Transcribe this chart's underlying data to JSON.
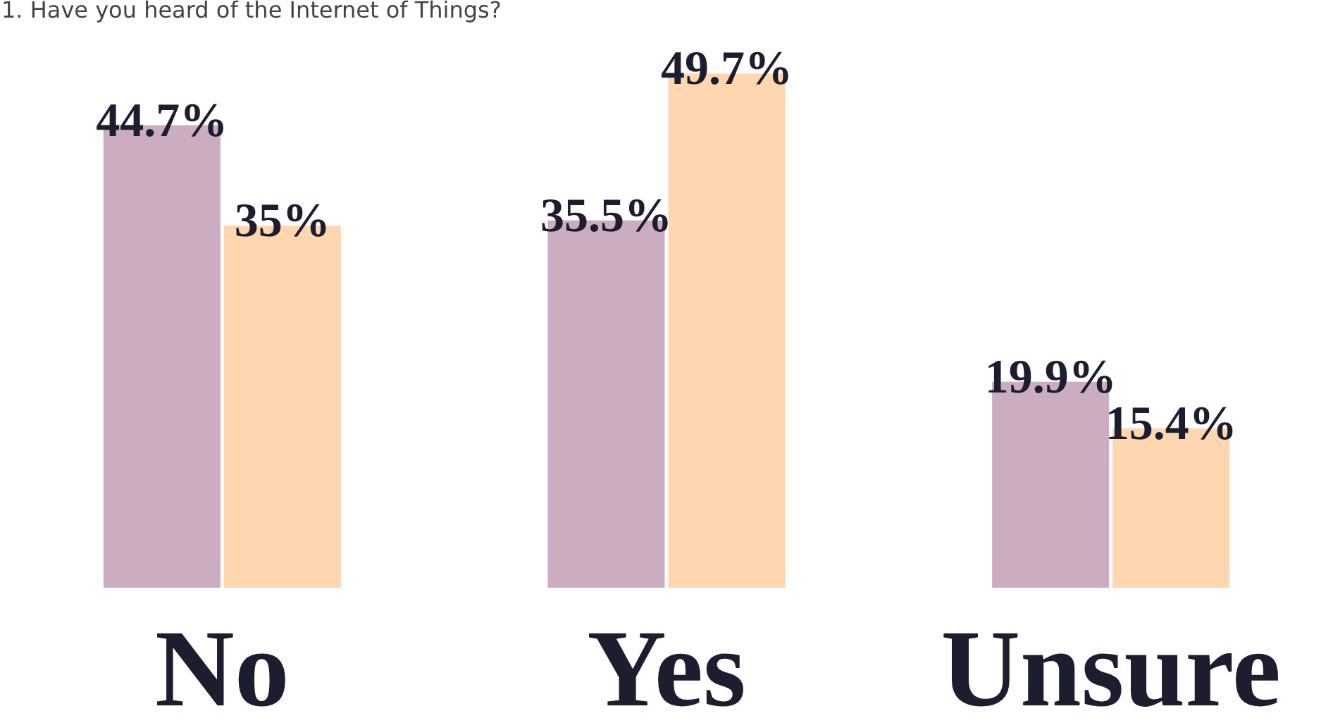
{
  "chart_data": {
    "type": "bar",
    "title": "1. Have you heard of the Internet of Things?",
    "categories": [
      "No",
      "Yes",
      "Unsure"
    ],
    "series": [
      {
        "color": "#cbacc1",
        "values": [
          44.7,
          35.5,
          19.9
        ],
        "value_labels": [
          "44.7%",
          "35.5%",
          "19.9%"
        ]
      },
      {
        "color": "#fed6b0",
        "values": [
          35,
          49.7,
          15.4
        ],
        "value_labels": [
          "35%",
          "49.7%",
          "15.4%"
        ]
      }
    ]
  }
}
